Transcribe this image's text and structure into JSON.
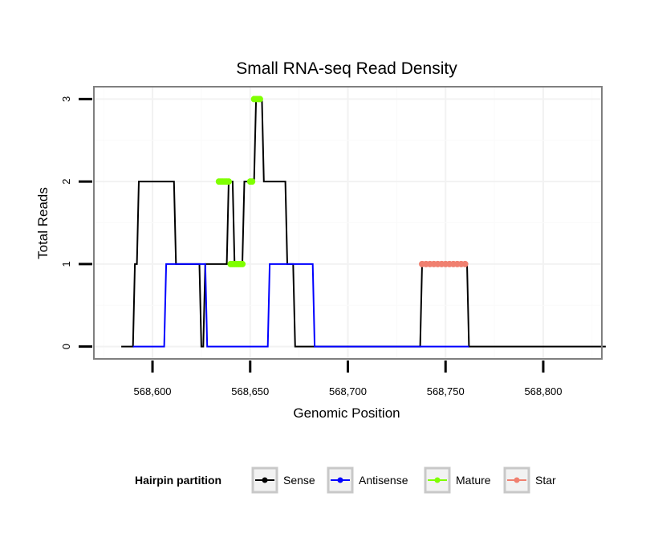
{
  "chart_data": {
    "type": "line",
    "title": "Small RNA-seq Read Density",
    "xlabel": "Genomic Position",
    "ylabel": "Total Reads",
    "xlim": [
      568570,
      568830
    ],
    "ylim": [
      -0.15,
      3.15
    ],
    "x_ticks": [
      568600,
      568650,
      568700,
      568750,
      568800
    ],
    "x_tick_labels": [
      "568,600",
      "568,650",
      "568,700",
      "568,750",
      "568,800"
    ],
    "y_ticks": [
      0,
      1,
      2,
      3
    ],
    "y_tick_labels": [
      "0",
      "1",
      "2",
      "3"
    ],
    "grid": true,
    "legend": {
      "title": "Hairpin partition",
      "position": "bottom",
      "entries": [
        {
          "name": "Sense",
          "color": "#000000"
        },
        {
          "name": "Antisense",
          "color": "#0000ff"
        },
        {
          "name": "Mature",
          "color": "#7fff00"
        },
        {
          "name": "Star",
          "color": "#f08070"
        }
      ]
    },
    "series": [
      {
        "name": "Sense",
        "color": "#000000",
        "style": "line",
        "x": [
          568584,
          568590,
          568591,
          568592,
          568593,
          568611,
          568612,
          568624,
          568625,
          568626,
          568627,
          568638,
          568639,
          568641,
          568642,
          568646,
          568647,
          568652,
          568653,
          568656,
          568657,
          568668,
          568669,
          568672,
          568673,
          568737,
          568738,
          568761,
          568762,
          568832
        ],
        "y": [
          0,
          0,
          1,
          1,
          2,
          2,
          1,
          1,
          0,
          0,
          1,
          1,
          2,
          2,
          1,
          1,
          2,
          2,
          3,
          3,
          2,
          2,
          1,
          1,
          0,
          0,
          1,
          1,
          0,
          0
        ]
      },
      {
        "name": "Antisense",
        "color": "#0000ff",
        "style": "line",
        "x": [
          568590,
          568606,
          568607,
          568627,
          568628,
          568659,
          568660,
          568682,
          568683,
          568762
        ],
        "y": [
          0,
          0,
          1,
          1,
          0,
          0,
          1,
          1,
          0,
          0
        ]
      },
      {
        "name": "Mature",
        "color": "#7fff00",
        "style": "points",
        "x": [
          568634,
          568635,
          568636,
          568637,
          568638,
          568639,
          568640,
          568641,
          568642,
          568643,
          568644,
          568645,
          568646,
          568650,
          568651,
          568652,
          568653,
          568654,
          568655
        ],
        "y": [
          2,
          2,
          2,
          2,
          2,
          2,
          1,
          1,
          1,
          1,
          1,
          1,
          1,
          2,
          2,
          3,
          3,
          3,
          3
        ]
      },
      {
        "name": "Star",
        "color": "#f08070",
        "style": "points",
        "x": [
          568738,
          568740,
          568742,
          568744,
          568746,
          568748,
          568750,
          568752,
          568754,
          568756,
          568758,
          568760
        ],
        "y": [
          1,
          1,
          1,
          1,
          1,
          1,
          1,
          1,
          1,
          1,
          1,
          1
        ]
      }
    ]
  }
}
